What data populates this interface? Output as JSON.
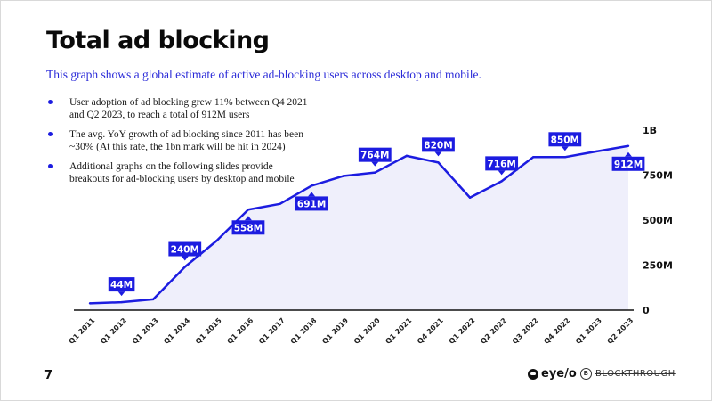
{
  "slide": {
    "title": "Total ad blocking",
    "subtitle": "This graph shows a global estimate of active ad-blocking users across desktop and mobile.",
    "bullets": [
      "User adoption of ad blocking grew 11% between Q4 2021 and Q2 2023, to reach a total of 912M users",
      "The avg. YoY growth of ad blocking since 2011 has been ~30% (At this rate, the 1bn mark will be hit in 2024)",
      "Additional graphs on the following slides provide breakouts for ad-blocking users by desktop and mobile"
    ],
    "page_number": "7",
    "footer_logos": [
      "eye/o",
      "BLOCKTHROUGH"
    ]
  },
  "colors": {
    "accent": "#1c1ce0",
    "fill": "#efeffb",
    "axis": "#111111"
  },
  "chart_data": {
    "type": "area",
    "categories": [
      "Q1 2011",
      "Q1 2012",
      "Q1 2013",
      "Q1 2014",
      "Q1 2015",
      "Q1 2016",
      "Q1 2017",
      "Q1 2018",
      "Q1 2019",
      "Q1 2020",
      "Q1 2021",
      "Q4 2021",
      "Q1 2022",
      "Q2 2022",
      "Q3 2022",
      "Q4 2022",
      "Q1 2023",
      "Q2 2023"
    ],
    "values": [
      38,
      44,
      60,
      240,
      385,
      558,
      590,
      691,
      745,
      764,
      857,
      820,
      625,
      716,
      850,
      850,
      882,
      912
    ],
    "ylim": [
      0,
      1000
    ],
    "yticks": [
      {
        "value": 0,
        "label": "0"
      },
      {
        "value": 250,
        "label": "250M"
      },
      {
        "value": 500,
        "label": "500M"
      },
      {
        "value": 750,
        "label": "750M"
      },
      {
        "value": 1000,
        "label": "1B"
      }
    ],
    "data_labels": [
      {
        "index": 1,
        "label": "44M",
        "side": "above"
      },
      {
        "index": 3,
        "label": "240M",
        "side": "above"
      },
      {
        "index": 5,
        "label": "558M",
        "side": "below"
      },
      {
        "index": 7,
        "label": "691M",
        "side": "below"
      },
      {
        "index": 9,
        "label": "764M",
        "side": "above"
      },
      {
        "index": 11,
        "label": "820M",
        "side": "above"
      },
      {
        "index": 13,
        "label": "716M",
        "side": "above"
      },
      {
        "index": 15,
        "label": "850M",
        "side": "above"
      },
      {
        "index": 17,
        "label": "912M",
        "side": "below"
      }
    ],
    "grid": false,
    "legend": "none",
    "y_axis_side": "right"
  }
}
